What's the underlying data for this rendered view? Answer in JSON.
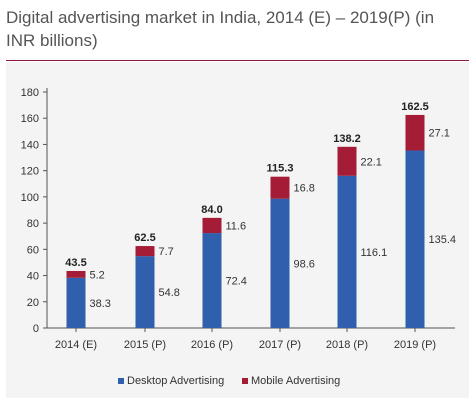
{
  "title": "Digital advertising market in India, 2014 (E) – 2019(P) (in INR billions)",
  "chart_data": {
    "type": "bar",
    "stacked": true,
    "categories": [
      "2014 (E)",
      "2015 (P)",
      "2016 (P)",
      "2017 (P)",
      "2018 (P)",
      "2019  (P)"
    ],
    "series": [
      {
        "name": "Desktop Advertising",
        "values": [
          38.3,
          54.8,
          72.4,
          98.6,
          116.1,
          135.4
        ],
        "color": "#2f5fad"
      },
      {
        "name": "Mobile Advertising",
        "values": [
          5.2,
          7.7,
          11.6,
          16.8,
          22.1,
          27.1
        ],
        "color": "#a51c37"
      }
    ],
    "totals": [
      "43.5",
      "62.5",
      "84.0",
      "115.3",
      "138.2",
      "162.5"
    ],
    "series_labels": [
      [
        "38.3",
        "54.8",
        "72.4",
        "98.6",
        "116.1",
        "135.4"
      ],
      [
        "5.2",
        "7.7",
        "11.6",
        "16.8",
        "22.1",
        "27.1"
      ]
    ],
    "yticks": [
      "0",
      "20",
      "40",
      "60",
      "80",
      "100",
      "120",
      "140",
      "160",
      "180"
    ],
    "ylim": [
      0,
      180
    ],
    "grid": false,
    "legend_position": "bottom"
  }
}
